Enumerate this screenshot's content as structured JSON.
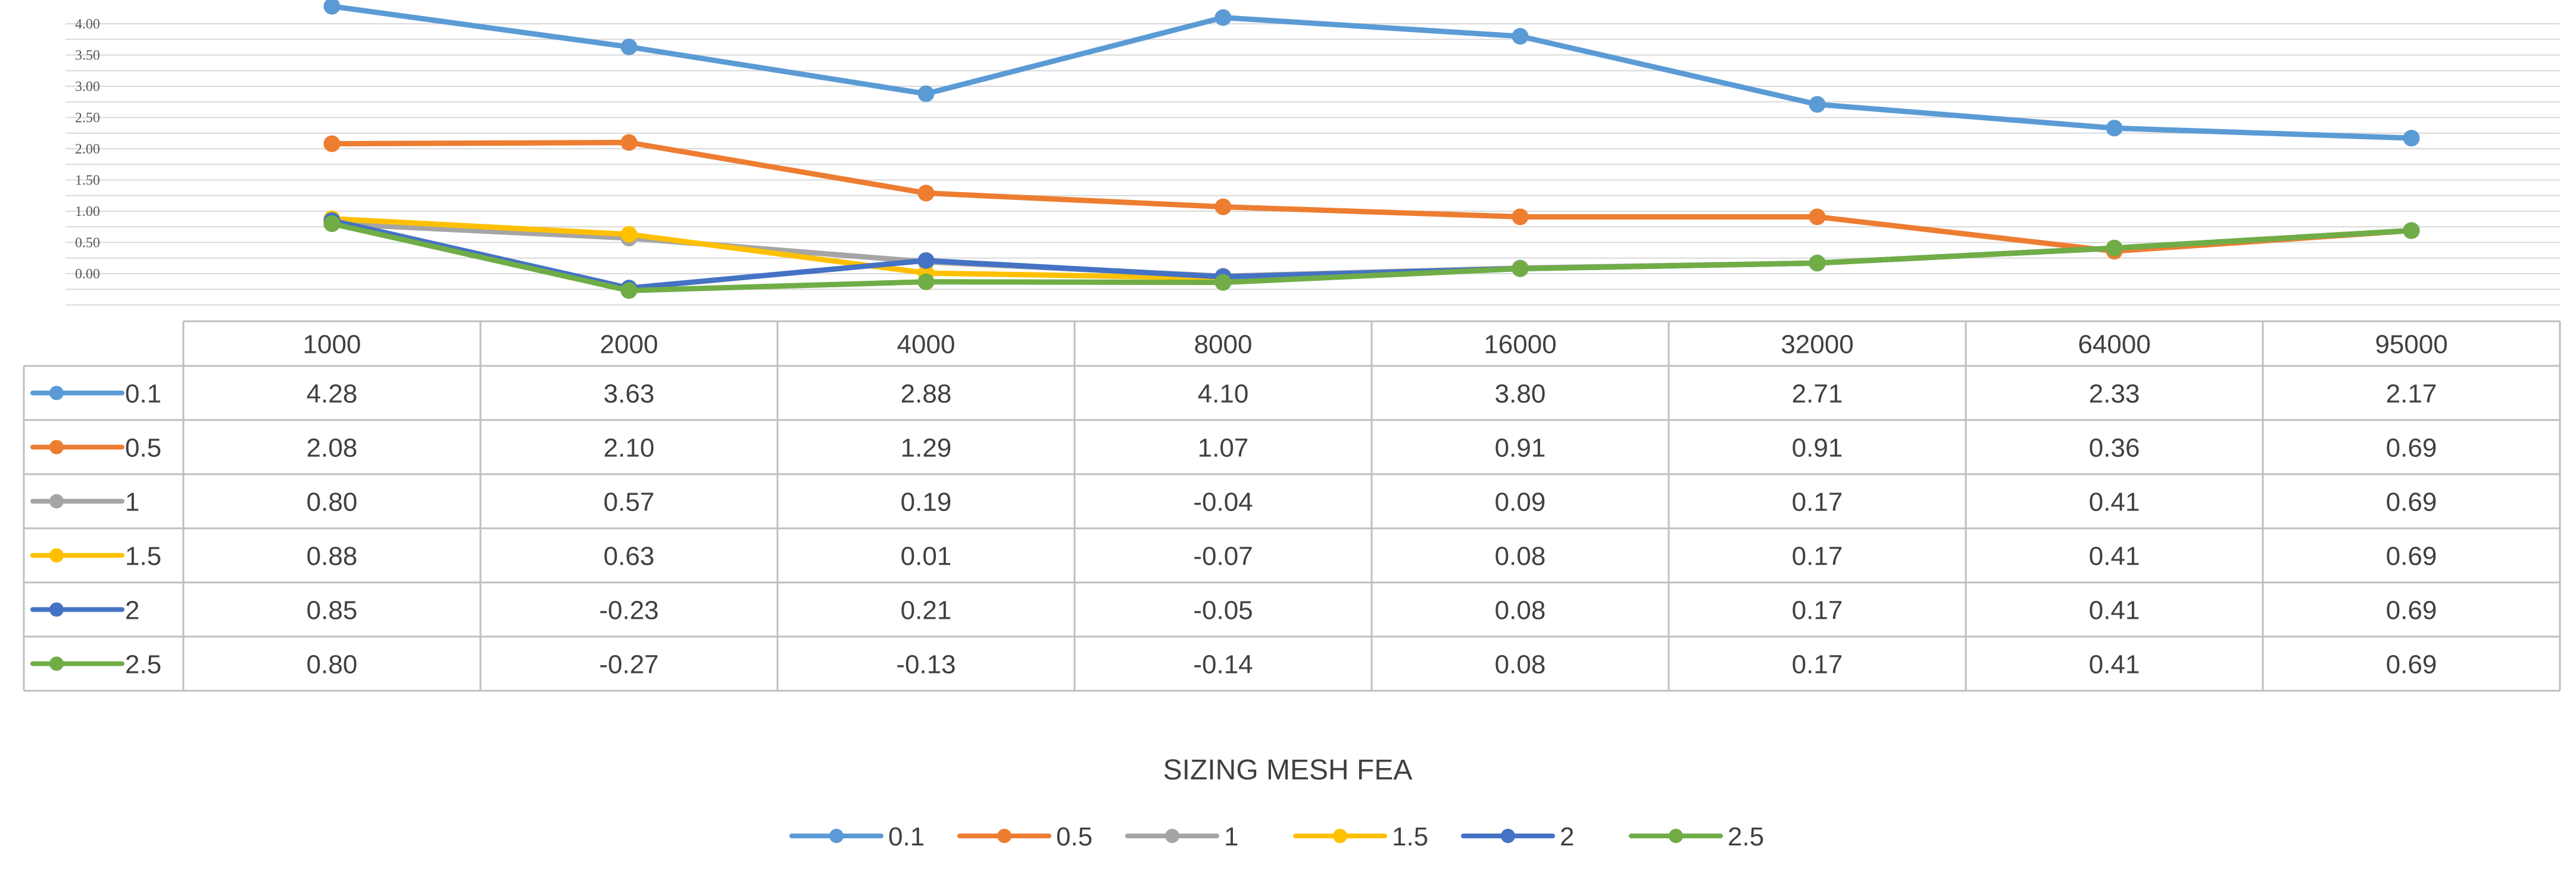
{
  "chart_data": {
    "type": "line",
    "title": "",
    "xlabel": "SIZING MESH FEA",
    "ylabel": "",
    "ylim": [
      -0.5,
      4.0
    ],
    "y_ticks": [
      "4.00",
      "3.50",
      "3.00",
      "2.50",
      "2.00",
      "1.50",
      "1.00",
      "0.50",
      "0.00"
    ],
    "grid": true,
    "legend_position": "bottom",
    "categories": [
      "1000",
      "2000",
      "4000",
      "8000",
      "16000",
      "32000",
      "64000",
      "95000"
    ],
    "series": [
      {
        "name": "0.1",
        "color": "#5B9BD5",
        "values": [
          4.28,
          3.63,
          2.88,
          4.1,
          3.8,
          2.71,
          2.33,
          2.17
        ],
        "labels": [
          "4.28",
          "3.63",
          "2.88",
          "4.10",
          "3.80",
          "2.71",
          "2.33",
          "2.17"
        ]
      },
      {
        "name": "0.5",
        "color": "#ED7D31",
        "values": [
          2.08,
          2.1,
          1.29,
          1.07,
          0.91,
          0.91,
          0.36,
          0.69
        ],
        "labels": [
          "2.08",
          "2.10",
          "1.29",
          "1.07",
          "0.91",
          "0.91",
          "0.36",
          "0.69"
        ]
      },
      {
        "name": "1",
        "color": "#A5A5A5",
        "values": [
          0.8,
          0.57,
          0.19,
          -0.04,
          0.09,
          0.17,
          0.41,
          0.69
        ],
        "labels": [
          "0.80",
          "0.57",
          "0.19",
          "-0.04",
          "0.09",
          "0.17",
          "0.41",
          "0.69"
        ]
      },
      {
        "name": "1.5",
        "color": "#FFC000",
        "values": [
          0.88,
          0.63,
          0.01,
          -0.07,
          0.08,
          0.17,
          0.41,
          0.69
        ],
        "labels": [
          "0.88",
          "0.63",
          "0.01",
          "-0.07",
          "0.08",
          "0.17",
          "0.41",
          "0.69"
        ]
      },
      {
        "name": "2",
        "color": "#4472C4",
        "values": [
          0.85,
          -0.23,
          0.21,
          -0.05,
          0.08,
          0.17,
          0.41,
          0.69
        ],
        "labels": [
          "0.85",
          "-0.23",
          "0.21",
          "-0.05",
          "0.08",
          "0.17",
          "0.41",
          "0.69"
        ]
      },
      {
        "name": "2.5",
        "color": "#70AD47",
        "values": [
          0.8,
          -0.27,
          -0.13,
          -0.14,
          0.08,
          0.17,
          0.41,
          0.69
        ],
        "labels": [
          "0.80",
          "-0.27",
          "-0.13",
          "-0.14",
          "0.08",
          "0.17",
          "0.41",
          "0.69"
        ]
      }
    ]
  }
}
